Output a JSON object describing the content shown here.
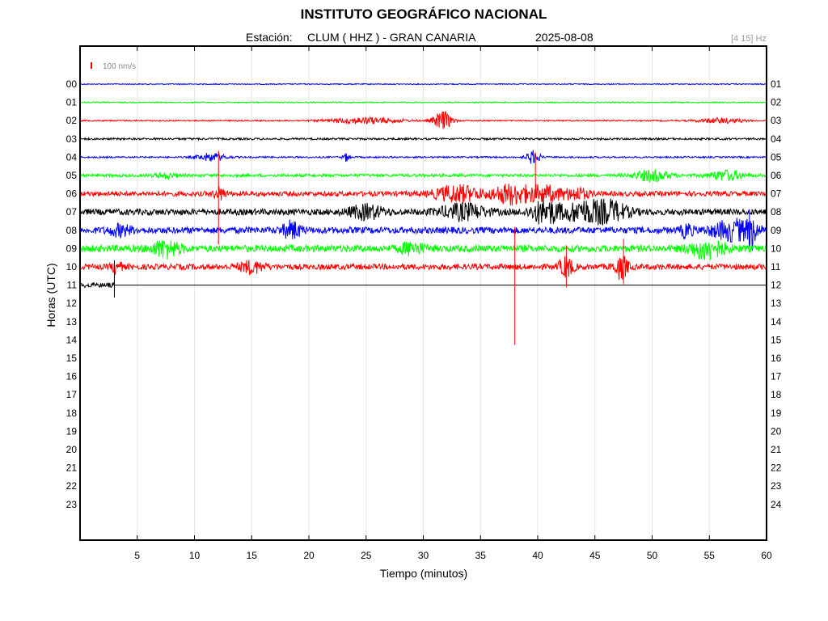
{
  "header": {
    "title": "INSTITUTO GEOGRÁFICO NACIONAL",
    "station_label": "Estación:",
    "station": "CLUM ( HHZ ) - GRAN CANARIA",
    "date": "2025-08-08",
    "band": "[4 15] Hz"
  },
  "chart_data": {
    "type": "line",
    "title": "INSTITUTO GEOGRÁFICO NACIONAL",
    "xlabel": "Tiempo (minutos)",
    "ylabel": "Horas (UTC)",
    "xlim": [
      0,
      60
    ],
    "x_ticks": [
      5,
      10,
      15,
      20,
      25,
      30,
      35,
      40,
      45,
      50,
      55,
      60
    ],
    "left_hour_labels": [
      "00",
      "01",
      "02",
      "03",
      "04",
      "05",
      "06",
      "07",
      "08",
      "09",
      "10",
      "11",
      "12",
      "13",
      "14",
      "15",
      "16",
      "17",
      "18",
      "19",
      "20",
      "21",
      "22",
      "23"
    ],
    "right_hour_labels": [
      "01",
      "02",
      "03",
      "04",
      "05",
      "06",
      "07",
      "08",
      "09",
      "10",
      "11",
      "12",
      "13",
      "14",
      "15",
      "16",
      "17",
      "18",
      "19",
      "20",
      "21",
      "22",
      "23",
      "24"
    ],
    "scale_bar": {
      "label": "100 nm/s",
      "color": "#ff0000"
    },
    "grid": true,
    "color_cycle": [
      "#0000ff",
      "#00ff00",
      "#ff0000",
      "#000000"
    ],
    "traces": [
      {
        "hour": 0,
        "end_min": 60,
        "noise": 0.6,
        "events": []
      },
      {
        "hour": 1,
        "end_min": 60,
        "noise": 0.7,
        "events": []
      },
      {
        "hour": 2,
        "end_min": 60,
        "noise": 0.8,
        "events": [
          {
            "min": 31.7,
            "amp": 12,
            "dur": 0.8
          },
          {
            "min": 25,
            "amp": 4,
            "dur": 3
          },
          {
            "min": 56,
            "amp": 3,
            "dur": 2
          }
        ]
      },
      {
        "hour": 3,
        "end_min": 60,
        "noise": 1.2,
        "events": []
      },
      {
        "hour": 4,
        "end_min": 60,
        "noise": 1.0,
        "events": [
          {
            "min": 11.5,
            "amp": 5,
            "dur": 1.2
          },
          {
            "min": 23.3,
            "amp": 5,
            "dur": 0.3
          },
          {
            "min": 39.6,
            "amp": 8,
            "dur": 0.6
          }
        ]
      },
      {
        "hour": 5,
        "end_min": 60,
        "noise": 1.8,
        "events": [
          {
            "min": 7.5,
            "amp": 3,
            "dur": 1
          },
          {
            "min": 50,
            "amp": 7,
            "dur": 1.5
          },
          {
            "min": 56.5,
            "amp": 6,
            "dur": 1.5
          }
        ]
      },
      {
        "hour": 6,
        "end_min": 60,
        "noise": 3.0,
        "events": [
          {
            "min": 12.2,
            "amp": 7,
            "dur": 0.5
          },
          {
            "min": 33,
            "amp": 10,
            "dur": 2
          },
          {
            "min": 37.5,
            "amp": 11,
            "dur": 1.5
          },
          {
            "min": 40.5,
            "amp": 9,
            "dur": 2
          },
          {
            "min": 43.5,
            "amp": 6,
            "dur": 1
          }
        ]
      },
      {
        "hour": 7,
        "end_min": 60,
        "noise": 3.8,
        "events": [
          {
            "min": 25,
            "amp": 8,
            "dur": 1.5
          },
          {
            "min": 33.5,
            "amp": 9,
            "dur": 2
          },
          {
            "min": 40.6,
            "amp": 14,
            "dur": 1.2
          },
          {
            "min": 44,
            "amp": 12,
            "dur": 2
          },
          {
            "min": 46.5,
            "amp": 10,
            "dur": 1.5
          }
        ]
      },
      {
        "hour": 8,
        "end_min": 60,
        "noise": 4.0,
        "events": [
          {
            "min": 3.5,
            "amp": 6,
            "dur": 1
          },
          {
            "min": 18.5,
            "amp": 10,
            "dur": 0.8
          },
          {
            "min": 53,
            "amp": 8,
            "dur": 0.5
          },
          {
            "min": 57.2,
            "amp": 12,
            "dur": 2
          },
          {
            "min": 58.7,
            "amp": 16,
            "dur": 0.3
          }
        ]
      },
      {
        "hour": 9,
        "end_min": 60,
        "noise": 4.2,
        "events": [
          {
            "min": 7.5,
            "amp": 10,
            "dur": 1.2
          },
          {
            "min": 29,
            "amp": 7,
            "dur": 1
          },
          {
            "min": 54.8,
            "amp": 12,
            "dur": 1.5
          }
        ]
      },
      {
        "hour": 10,
        "end_min": 60,
        "noise": 3.5,
        "events": [
          {
            "min": 3.2,
            "amp": 8,
            "dur": 0.4
          },
          {
            "min": 15,
            "amp": 7,
            "dur": 1
          },
          {
            "min": 42.5,
            "amp": 12,
            "dur": 0.6
          },
          {
            "min": 47.3,
            "amp": 14,
            "dur": 0.6
          }
        ]
      },
      {
        "hour": 11,
        "end_min": 3.0,
        "noise": 3.0,
        "events": []
      }
    ],
    "spikes": [
      {
        "hour": 4,
        "min": 12.1,
        "up": 8,
        "down": 108,
        "color": "#ff0000"
      },
      {
        "hour": 4,
        "min": 39.8,
        "up": 6,
        "down": 50,
        "color": "#ff0000"
      },
      {
        "hour": 8,
        "min": 38.0,
        "up": 4,
        "down": 142,
        "color": "#ff0000"
      },
      {
        "hour": 8,
        "min": 58.5,
        "up": 26,
        "down": 16,
        "color": "#0000ff"
      },
      {
        "hour": 9,
        "min": 42.5,
        "up": 4,
        "down": 48,
        "color": "#ff0000"
      },
      {
        "hour": 9,
        "min": 47.5,
        "up": 12,
        "down": 44,
        "color": "#ff0000"
      },
      {
        "hour": 10,
        "min": 3.0,
        "up": 8,
        "down": 38,
        "color": "#000000"
      }
    ]
  }
}
